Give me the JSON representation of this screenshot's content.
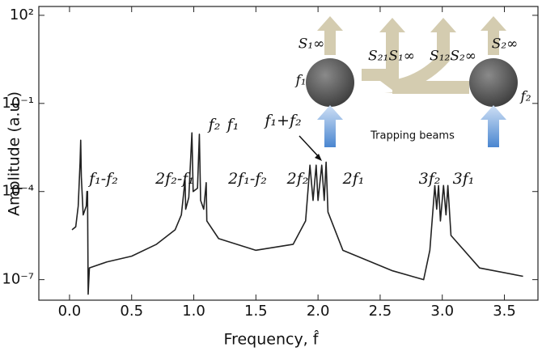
{
  "chart_data": {
    "type": "line",
    "yscale": "log",
    "xlabel": "Frequency, f̂",
    "ylabel": "Amplitude (a.u.)",
    "xlim": [
      -0.247,
      3.77
    ],
    "ylim": [
      2e-08,
      200
    ],
    "xticks": [
      {
        "value": 0,
        "label": "0.0"
      },
      0.5,
      {
        "value": 1,
        "label": "1.0"
      },
      1.5,
      {
        "value": 2,
        "label": "2.0"
      },
      2.5,
      {
        "value": 3,
        "label": "3.0"
      },
      3.5
    ],
    "yticks": [
      {
        "value": 100,
        "label": "10²"
      },
      {
        "value": 0.1,
        "label": "10⁻¹"
      },
      {
        "value": 0.0001,
        "label": "10⁻⁴"
      },
      {
        "value": 1e-07,
        "label": "10⁻⁷"
      }
    ],
    "x": [
      0.02,
      0.05,
      0.07,
      0.085,
      0.09,
      0.095,
      0.11,
      0.135,
      0.14,
      0.145,
      0.15,
      0.16,
      0.3,
      0.5,
      0.7,
      0.85,
      0.9,
      0.93,
      0.935,
      0.96,
      0.985,
      0.995,
      1.03,
      1.045,
      1.055,
      1.08,
      1.1,
      1.105,
      1.2,
      1.5,
      1.8,
      1.9,
      1.935,
      1.96,
      1.985,
      2.0,
      2.03,
      2.05,
      2.065,
      2.08,
      2.2,
      2.6,
      2.85,
      2.9,
      2.94,
      2.955,
      2.97,
      2.985,
      3.01,
      3.03,
      3.045,
      3.07,
      3.3,
      3.65
    ],
    "series": [
      {
        "color": "#222222",
        "values": [
          5e-06,
          6.3e-06,
          3.2e-05,
          0.001,
          0.0056,
          0.00032,
          1.6e-05,
          3.2e-05,
          0.0001,
          0.0001,
          3.2e-08,
          2.5e-07,
          4e-07,
          6.3e-07,
          1.6e-06,
          5e-06,
          1.6e-05,
          0.00025,
          2.5e-05,
          6.3e-05,
          0.01,
          0.0001,
          0.00013,
          0.0089,
          5e-05,
          2.5e-05,
          0.0002,
          1e-05,
          2.5e-06,
          1e-06,
          1.6e-06,
          1e-05,
          0.00079,
          5e-05,
          0.00079,
          5e-05,
          0.00079,
          5e-05,
          0.001,
          2e-05,
          1e-06,
          2e-07,
          1e-07,
          1e-06,
          0.00016,
          2.5e-05,
          0.00016,
          1e-05,
          0.00016,
          1.6e-05,
          0.00016,
          3.2e-06,
          2.5e-07,
          1.3e-07
        ]
      }
    ],
    "annotations": [
      "f₁-f₂",
      "2f₂-f₁",
      "f₂",
      "f₁",
      "2f₁-f₂",
      "f₁+f₂",
      "2f₂",
      "2f₁",
      "3f₂",
      "3f₁"
    ],
    "inset_labels": [
      "S₁∞",
      "S₂₁S₁∞",
      "S₁₂S₂∞",
      "S₂∞",
      "f₁",
      "f₂",
      "Trapping beams"
    ]
  }
}
